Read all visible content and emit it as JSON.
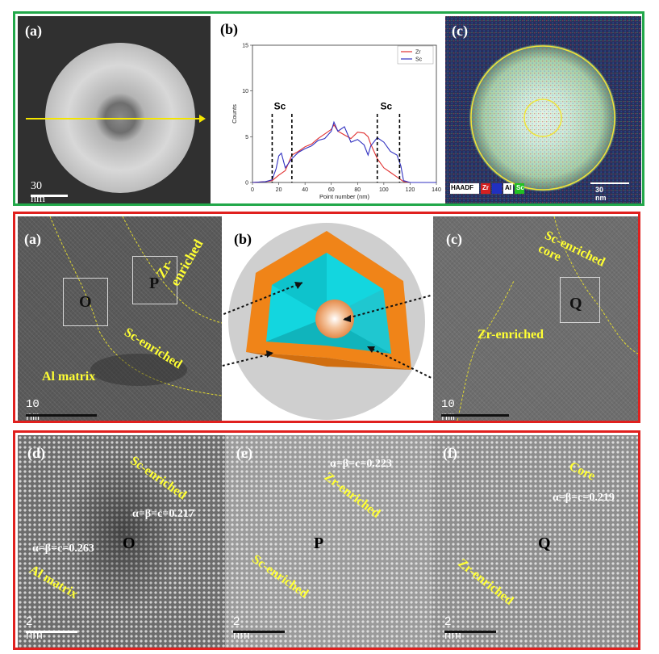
{
  "figure1": {
    "panel_a": {
      "label": "(a)",
      "scale_bar": "30 nm"
    },
    "panel_b": {
      "label": "(b)"
    },
    "panel_c": {
      "label": "(c)",
      "legend": [
        "HAADF",
        "Zr",
        "Al",
        "Sc"
      ],
      "scale_bar": "30 nm"
    }
  },
  "figure2": {
    "panel_a": {
      "label": "(a)",
      "regions": [
        "Zr-enriched",
        "Sc-enriched",
        "Al matrix"
      ],
      "boxes": [
        "O",
        "P"
      ],
      "scale_bar": "10 nm"
    },
    "panel_b": {
      "label": "(b)"
    },
    "panel_c": {
      "label": "(c)",
      "regions": [
        "Sc-enriched core",
        "Zr-enriched"
      ],
      "boxes": [
        "Q"
      ],
      "scale_bar": "10 nm"
    }
  },
  "figure3": {
    "panel_d": {
      "label": "(d)",
      "regions": [
        "Sc-enriched",
        "Al matrix"
      ],
      "params": [
        "α=β=c=0.217",
        "α=β=c=0.263"
      ],
      "point": "O",
      "scale_bar": "2 nm"
    },
    "panel_e": {
      "label": "(e)",
      "regions": [
        "Zr-enriched",
        "Sc-enriched"
      ],
      "params": [
        "α=β=c=0.223"
      ],
      "point": "P",
      "scale_bar": "2 nm"
    },
    "panel_f": {
      "label": "(f)",
      "regions": [
        "Core",
        "Zr-enriched"
      ],
      "params": [
        "α=β=c=0.219"
      ],
      "point": "Q",
      "scale_bar": "2 nm"
    }
  },
  "chart_data": {
    "type": "line",
    "title": "",
    "xlabel": "Point number (nm)",
    "ylabel": "Counts",
    "xlim": [
      0,
      140
    ],
    "ylim": [
      0,
      15
    ],
    "xticks": [
      0,
      20,
      40,
      60,
      80,
      100,
      120,
      140
    ],
    "yticks": [
      0,
      5,
      10,
      15
    ],
    "legend_position": "top-right",
    "series": [
      {
        "name": "Zr",
        "color": "#e03030",
        "x": [
          0,
          10,
          15,
          20,
          25,
          28,
          30,
          35,
          40,
          45,
          50,
          55,
          60,
          62,
          65,
          70,
          75,
          80,
          85,
          88,
          90,
          95,
          100,
          105,
          110,
          115,
          120,
          130,
          140
        ],
        "y": [
          0,
          0.1,
          0.2,
          0.8,
          1.3,
          2.3,
          3.0,
          3.4,
          3.9,
          4.2,
          4.8,
          5.3,
          5.8,
          6.3,
          5.6,
          5.2,
          4.8,
          5.5,
          5.4,
          5.0,
          4.2,
          2.6,
          1.6,
          1.1,
          0.6,
          0.1,
          0.0,
          0.0,
          0.0
        ]
      },
      {
        "name": "Sc",
        "color": "#3030c0",
        "x": [
          0,
          10,
          15,
          18,
          20,
          22,
          25,
          28,
          30,
          35,
          40,
          45,
          50,
          55,
          60,
          62,
          65,
          70,
          75,
          80,
          85,
          88,
          90,
          95,
          100,
          105,
          110,
          113,
          115,
          120,
          130,
          140
        ],
        "y": [
          0,
          0.1,
          0.3,
          1.5,
          2.9,
          3.2,
          1.6,
          2.2,
          2.6,
          3.3,
          3.7,
          4.0,
          4.6,
          4.8,
          5.6,
          6.6,
          5.6,
          6.1,
          4.4,
          4.7,
          4.1,
          3.0,
          4.0,
          4.9,
          4.4,
          3.4,
          3.0,
          1.8,
          0.2,
          0.0,
          0.0,
          0.0
        ]
      }
    ],
    "annotations": [
      "Sc",
      "Sc"
    ]
  }
}
